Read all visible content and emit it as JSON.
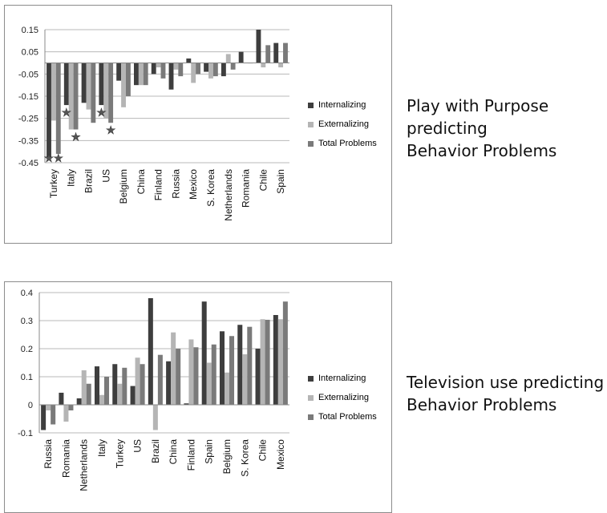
{
  "colors": {
    "internalizing": "#3e3e3e",
    "externalizing": "#b5b5b5",
    "total": "#7a7a7a",
    "grid": "#b8b8b8",
    "axis": "#888888"
  },
  "captions": {
    "top": [
      "Play with Purpose",
      "predicting",
      "Behavior Problems"
    ],
    "bottom": [
      "Television use predicting",
      "Behavior Problems"
    ]
  },
  "chart_data": [
    {
      "type": "bar",
      "categories": [
        "Turkey",
        "Italy",
        "Brazil",
        "US",
        "Belgium",
        "China",
        "Finland",
        "Russia",
        "Mexico",
        "S. Korea",
        "Netherlands",
        "Romania",
        "Chile",
        "Spain"
      ],
      "series": [
        {
          "name": "Internalizing",
          "values": [
            -0.43,
            -0.19,
            -0.18,
            -0.19,
            -0.08,
            -0.1,
            -0.05,
            -0.12,
            0.02,
            -0.04,
            -0.06,
            0.05,
            0.15,
            0.09
          ]
        },
        {
          "name": "Externalizing",
          "values": [
            -0.26,
            -0.3,
            -0.21,
            -0.25,
            -0.2,
            -0.1,
            -0.02,
            -0.03,
            -0.09,
            -0.07,
            0.04,
            0.0,
            -0.02,
            -0.02
          ]
        },
        {
          "name": "Total Problems",
          "values": [
            -0.41,
            -0.3,
            -0.27,
            -0.27,
            -0.15,
            -0.1,
            -0.07,
            -0.06,
            -0.05,
            -0.06,
            -0.03,
            0.0,
            0.08,
            0.09
          ]
        }
      ],
      "ylim": [
        -0.45,
        0.15
      ],
      "yticks": [
        "0.15",
        "0.05",
        "-0.05",
        "-0.15",
        "-0.25",
        "-0.35",
        "-0.45"
      ],
      "ytick_values": [
        0.15,
        0.05,
        -0.05,
        -0.15,
        -0.25,
        -0.35,
        -0.45
      ],
      "grid": true,
      "legend": "right",
      "markers": [
        {
          "category": "Turkey",
          "series": "Internalizing",
          "symbol": "★"
        },
        {
          "category": "Turkey",
          "series": "Total Problems",
          "symbol": "★"
        },
        {
          "category": "Italy",
          "series": "Internalizing",
          "symbol": "★"
        },
        {
          "category": "Italy",
          "series": "Total Problems",
          "symbol": "★"
        },
        {
          "category": "US",
          "series": "Internalizing",
          "symbol": "★"
        },
        {
          "category": "US",
          "series": "Total Problems",
          "symbol": "★"
        }
      ]
    },
    {
      "type": "bar",
      "categories": [
        "Russia",
        "Romania",
        "Netherlands",
        "Italy",
        "Turkey",
        "US",
        "Brazil",
        "China",
        "Finland",
        "Spain",
        "Belgium",
        "S. Korea",
        "Chile",
        "Mexico"
      ],
      "series": [
        {
          "name": "Internalizing",
          "values": [
            -0.09,
            0.043,
            0.023,
            0.137,
            0.145,
            0.067,
            0.38,
            0.155,
            0.005,
            0.368,
            0.262,
            0.285,
            0.2,
            0.32
          ]
        },
        {
          "name": "Externalizing",
          "values": [
            -0.02,
            -0.06,
            0.123,
            0.035,
            0.075,
            0.168,
            -0.09,
            0.258,
            0.233,
            0.15,
            0.115,
            0.18,
            0.305,
            0.305
          ]
        },
        {
          "name": "Total Problems",
          "values": [
            -0.07,
            -0.02,
            0.075,
            0.1,
            0.132,
            0.145,
            0.178,
            0.2,
            0.205,
            0.215,
            0.245,
            0.278,
            0.303,
            0.368
          ]
        }
      ],
      "ylim": [
        -0.1,
        0.4
      ],
      "yticks": [
        "0.4",
        "0.3",
        "0.2",
        "0.1",
        "0",
        "-0.1"
      ],
      "ytick_values": [
        0.4,
        0.3,
        0.2,
        0.1,
        0,
        -0.1
      ],
      "grid": true,
      "legend": "right"
    }
  ]
}
